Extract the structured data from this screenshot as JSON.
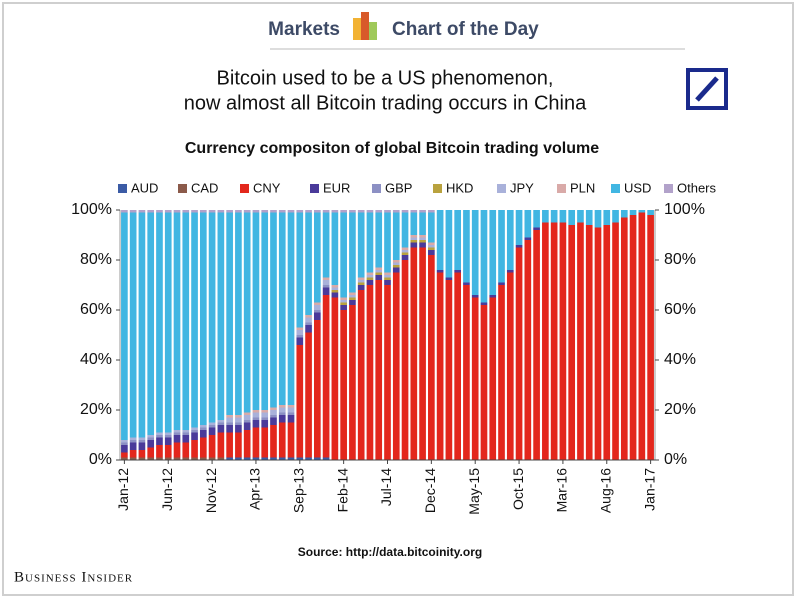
{
  "header": {
    "left": "Markets",
    "right": "Chart of the Day"
  },
  "footer": "Business Insider",
  "chart_data": {
    "type": "stacked-bar",
    "title": [
      "Bitcoin used to be a US phenomenon,",
      "now almost all Bitcoin trading occurs in China"
    ],
    "subtitle": "Currency compositon of global Bitcoin trading volume",
    "source": "Source: http://data.bitcoinity.org",
    "categories": [
      "Jan-12",
      null,
      null,
      null,
      null,
      "Jun-12",
      null,
      null,
      null,
      null,
      "Nov-12",
      null,
      null,
      null,
      null,
      "Apr-13",
      null,
      null,
      null,
      null,
      "Sep-13",
      null,
      null,
      null,
      null,
      "Feb-14",
      null,
      null,
      null,
      null,
      "Jul-14",
      null,
      null,
      null,
      null,
      "Dec-14",
      null,
      null,
      null,
      null,
      "May-15",
      null,
      null,
      null,
      null,
      "Oct-15",
      null,
      null,
      null,
      null,
      "Mar-16",
      null,
      null,
      null,
      null,
      "Aug-16",
      null,
      null,
      null,
      null,
      "Jan-17"
    ],
    "series": [
      {
        "name": "AUD",
        "color": "#3b5ba5",
        "values": [
          0,
          0,
          0,
          0,
          0,
          0,
          0,
          0,
          0,
          0,
          0,
          0,
          1,
          1,
          1,
          1,
          1,
          1,
          1,
          1,
          1,
          1,
          1,
          1,
          0,
          0,
          0,
          0,
          0,
          0,
          0,
          0,
          0,
          0,
          0,
          0,
          0,
          0,
          0,
          0,
          0,
          0,
          0,
          0,
          0,
          0,
          0,
          0,
          0,
          0,
          0,
          0,
          0,
          0,
          0,
          0,
          0,
          0,
          0,
          0,
          0
        ]
      },
      {
        "name": "CAD",
        "color": "#8b5a4a",
        "values": [
          1,
          1,
          1,
          1,
          1,
          1,
          1,
          1,
          1,
          1,
          1,
          1,
          0,
          0,
          0,
          0,
          0,
          0,
          0,
          0,
          0,
          0,
          0,
          0,
          0,
          0,
          0,
          0,
          0,
          0,
          0,
          0,
          0,
          0,
          0,
          0,
          0,
          0,
          0,
          0,
          0,
          0,
          0,
          0,
          0,
          0,
          0,
          0,
          0,
          0,
          0,
          0,
          0,
          0,
          0,
          0,
          0,
          0,
          0,
          0,
          0
        ]
      },
      {
        "name": "CNY",
        "color": "#e3271c",
        "values": [
          2,
          3,
          3,
          4,
          5,
          5,
          6,
          6,
          7,
          8,
          9,
          10,
          10,
          10,
          11,
          12,
          12,
          13,
          14,
          14,
          45,
          50,
          55,
          65,
          65,
          60,
          62,
          68,
          70,
          72,
          70,
          75,
          80,
          85,
          85,
          82,
          75,
          72,
          75,
          70,
          65,
          62,
          65,
          70,
          75,
          85,
          88,
          92,
          95,
          95,
          95,
          94,
          95,
          94,
          93,
          94,
          95,
          97,
          98,
          99,
          98
        ]
      },
      {
        "name": "EUR",
        "color": "#4a3a9a",
        "values": [
          3,
          3,
          3,
          3,
          3,
          3,
          3,
          3,
          3,
          3,
          3,
          3,
          3,
          3,
          3,
          3,
          3,
          3,
          3,
          3,
          3,
          3,
          3,
          3,
          2,
          2,
          2,
          2,
          2,
          2,
          2,
          2,
          2,
          2,
          2,
          2,
          1,
          1,
          1,
          1,
          1,
          1,
          1,
          1,
          1,
          1,
          1,
          1,
          0,
          0,
          0,
          0,
          0,
          0,
          0,
          0,
          0,
          0,
          0,
          0,
          0
        ]
      },
      {
        "name": "GBP",
        "color": "#8c90c4",
        "values": [
          1,
          1,
          1,
          1,
          1,
          1,
          1,
          1,
          1,
          1,
          1,
          1,
          1,
          1,
          1,
          1,
          1,
          1,
          1,
          1,
          1,
          1,
          1,
          1,
          0,
          0,
          0,
          0,
          0,
          0,
          0,
          0,
          0,
          0,
          0,
          0,
          0,
          0,
          0,
          0,
          0,
          0,
          0,
          0,
          0,
          0,
          0,
          0,
          0,
          0,
          0,
          0,
          0,
          0,
          0,
          0,
          0,
          0,
          0,
          0,
          0
        ]
      },
      {
        "name": "HKD",
        "color": "#b9a23e",
        "values": [
          0,
          0,
          0,
          0,
          0,
          0,
          0,
          0,
          0,
          0,
          0,
          0,
          0,
          0,
          0,
          0,
          0,
          0,
          0,
          0,
          0,
          0,
          0,
          0,
          1,
          1,
          1,
          1,
          1,
          1,
          1,
          1,
          1,
          1,
          1,
          1,
          0,
          0,
          0,
          0,
          0,
          0,
          0,
          0,
          0,
          0,
          0,
          0,
          0,
          0,
          0,
          0,
          0,
          0,
          0,
          0,
          0,
          0,
          0,
          0,
          0
        ]
      },
      {
        "name": "JPY",
        "color": "#a9b1da",
        "values": [
          1,
          1,
          1,
          1,
          1,
          1,
          1,
          1,
          1,
          1,
          1,
          1,
          2,
          2,
          2,
          2,
          2,
          2,
          2,
          2,
          2,
          2,
          2,
          2,
          1,
          1,
          1,
          1,
          1,
          1,
          1,
          1,
          1,
          1,
          1,
          1,
          0,
          0,
          0,
          0,
          0,
          0,
          0,
          0,
          0,
          0,
          0,
          0,
          0,
          0,
          0,
          0,
          0,
          0,
          0,
          0,
          0,
          0,
          0,
          0,
          0
        ]
      },
      {
        "name": "PLN",
        "color": "#d9aaa8",
        "values": [
          0,
          0,
          0,
          0,
          0,
          0,
          0,
          0,
          0,
          0,
          0,
          0,
          1,
          1,
          1,
          1,
          1,
          1,
          1,
          1,
          1,
          1,
          1,
          1,
          1,
          1,
          1,
          1,
          1,
          1,
          1,
          1,
          1,
          1,
          1,
          1,
          0,
          0,
          0,
          0,
          0,
          0,
          0,
          0,
          0,
          0,
          0,
          0,
          0,
          0,
          0,
          0,
          0,
          0,
          0,
          0,
          0,
          0,
          0,
          0,
          0
        ]
      },
      {
        "name": "USD",
        "color": "#41b6e2",
        "values": [
          91,
          90,
          90,
          89,
          88,
          88,
          87,
          87,
          86,
          85,
          84,
          83,
          81,
          81,
          80,
          79,
          79,
          78,
          77,
          77,
          46,
          41,
          36,
          26,
          29,
          34,
          32,
          26,
          24,
          22,
          24,
          19,
          14,
          9,
          9,
          12,
          24,
          27,
          24,
          29,
          34,
          37,
          34,
          29,
          24,
          14,
          11,
          7,
          5,
          5,
          5,
          6,
          5,
          6,
          7,
          6,
          5,
          3,
          2,
          1,
          2
        ]
      },
      {
        "name": "Others",
        "color": "#b2a2ca",
        "values": [
          1,
          1,
          1,
          1,
          1,
          1,
          1,
          1,
          1,
          1,
          1,
          1,
          1,
          1,
          1,
          1,
          1,
          1,
          1,
          1,
          1,
          1,
          1,
          1,
          1,
          1,
          1,
          1,
          1,
          1,
          1,
          1,
          1,
          1,
          1,
          1,
          0,
          0,
          0,
          0,
          0,
          0,
          0,
          0,
          0,
          0,
          0,
          0,
          0,
          0,
          0,
          0,
          0,
          0,
          0,
          0,
          0,
          0,
          0,
          0,
          0
        ]
      }
    ],
    "ylim": [
      0,
      100
    ],
    "yticks": [
      {
        "value": 0,
        "label": "0%"
      },
      {
        "value": 20,
        "label": "20%"
      },
      {
        "value": 40,
        "label": "40%"
      },
      {
        "value": 60,
        "label": "60%"
      },
      {
        "value": 80,
        "label": "80%"
      },
      {
        "value": 100,
        "label": "100%"
      }
    ],
    "y2lim": [
      0,
      100
    ],
    "y2ticks": [
      {
        "value": 0,
        "label": "0%"
      },
      {
        "value": 20,
        "label": "20%"
      },
      {
        "value": 40,
        "label": "40%"
      },
      {
        "value": 60,
        "label": "60%"
      },
      {
        "value": 80,
        "label": "80%"
      },
      {
        "value": 100,
        "label": "100%"
      }
    ]
  }
}
